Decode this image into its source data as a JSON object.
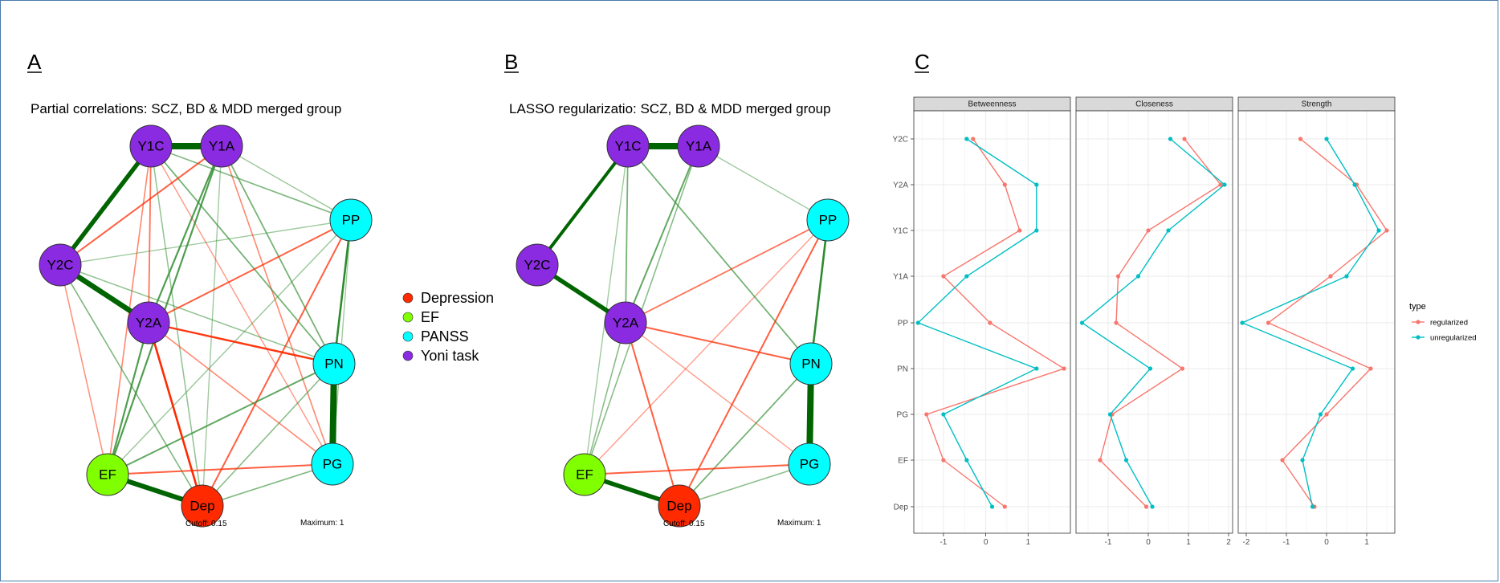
{
  "panels": [
    {
      "letter": "A",
      "title": "Partial correlations: SCZ, BD & MDD merged group",
      "cutoff": "Cutoff: 0.15",
      "maximum": "Maximum: 1"
    },
    {
      "letter": "B",
      "title": "LASSO regularizatio: SCZ, BD & MDD merged group",
      "cutoff": "Cutoff: 0.15",
      "maximum": "Maximum: 1"
    },
    {
      "letter": "C"
    }
  ],
  "network_nodes": [
    {
      "id": "Y1C",
      "group": "Yoni task"
    },
    {
      "id": "Y1A",
      "group": "Yoni task"
    },
    {
      "id": "PP",
      "group": "PANSS"
    },
    {
      "id": "Y2C",
      "group": "Yoni task"
    },
    {
      "id": "Y2A",
      "group": "Yoni task"
    },
    {
      "id": "PN",
      "group": "PANSS"
    },
    {
      "id": "PG",
      "group": "PANSS"
    },
    {
      "id": "EF",
      "group": "EF"
    },
    {
      "id": "Dep",
      "group": "Depression"
    }
  ],
  "groups": {
    "Depression": "#ff2a00",
    "EF": "#80ff00",
    "PANSS": "#00ffff",
    "Yoni task": "#8a2be2"
  },
  "legend": [
    {
      "label": "Depression",
      "color": "#ff2a00"
    },
    {
      "label": "EF",
      "color": "#80ff00"
    },
    {
      "label": "PANSS",
      "color": "#00ffff"
    },
    {
      "label": "Yoni task",
      "color": "#8a2be2"
    }
  ],
  "edges_A": [
    [
      "Y1C",
      "Y1A",
      1.0
    ],
    [
      "Y1C",
      "Y2C",
      0.75
    ],
    [
      "Y2C",
      "Y2A",
      0.85
    ],
    [
      "PP",
      "PN",
      0.45
    ],
    [
      "PN",
      "PG",
      1.0
    ],
    [
      "EF",
      "Dep",
      0.8
    ],
    [
      "Y2A",
      "Dep",
      -0.45
    ],
    [
      "Y2A",
      "PN",
      -0.4
    ],
    [
      "Y1A",
      "Y2A",
      0.35
    ],
    [
      "Y1A",
      "EF",
      0.35
    ],
    [
      "Y2A",
      "EF",
      0.35
    ],
    [
      "Y1C",
      "Y2A",
      -0.25
    ],
    [
      "Y1A",
      "Y2C",
      -0.3
    ],
    [
      "Y2A",
      "PP",
      -0.3
    ],
    [
      "PP",
      "Dep",
      -0.3
    ],
    [
      "PN",
      "EF",
      0.3
    ],
    [
      "EF",
      "PG",
      -0.3
    ],
    [
      "Y1C",
      "PN",
      0.25
    ],
    [
      "Y1A",
      "PN",
      0.25
    ],
    [
      "Y1C",
      "PP",
      0.22
    ],
    [
      "Y2C",
      "Dep",
      0.22
    ],
    [
      "PG",
      "Dep",
      0.22
    ],
    [
      "Y1C",
      "EF",
      -0.2
    ],
    [
      "PN",
      "Dep",
      0.2
    ],
    [
      "Y2A",
      "PG",
      -0.2
    ],
    [
      "Y1A",
      "PG",
      -0.2
    ],
    [
      "Y1C",
      "Dep",
      0.18
    ],
    [
      "Y2C",
      "PN",
      0.18
    ],
    [
      "Y2C",
      "EF",
      -0.18
    ],
    [
      "Y1A",
      "PP",
      0.16
    ],
    [
      "PP",
      "EF",
      0.16
    ],
    [
      "Y1C",
      "PG",
      -0.16
    ],
    [
      "Y2C",
      "PP",
      0.15
    ],
    [
      "Y1A",
      "Dep",
      0.15
    ],
    [
      "PP",
      "PG",
      0.15
    ]
  ],
  "edges_B": [
    [
      "Y1C",
      "Y1A",
      1.0
    ],
    [
      "Y1C",
      "Y2C",
      0.6
    ],
    [
      "Y2C",
      "Y2A",
      0.75
    ],
    [
      "PP",
      "PN",
      0.45
    ],
    [
      "PN",
      "PG",
      1.0
    ],
    [
      "EF",
      "Dep",
      0.75
    ],
    [
      "Y1A",
      "Y2A",
      0.3
    ],
    [
      "Y1C",
      "Y2A",
      0.25
    ],
    [
      "Y2A",
      "PN",
      -0.3
    ],
    [
      "Y1C",
      "PN",
      0.25
    ],
    [
      "Y2A",
      "PP",
      -0.25
    ],
    [
      "Y2A",
      "Dep",
      -0.3
    ],
    [
      "PP",
      "Dep",
      -0.3
    ],
    [
      "PN",
      "Dep",
      0.25
    ],
    [
      "EF",
      "PG",
      -0.3
    ],
    [
      "Y1A",
      "EF",
      0.2
    ],
    [
      "Y2A",
      "EF",
      0.2
    ],
    [
      "PG",
      "Dep",
      0.2
    ],
    [
      "Y1A",
      "PP",
      0.15
    ],
    [
      "Y1C",
      "EF",
      0.15
    ],
    [
      "Y2A",
      "PG",
      -0.15
    ],
    [
      "PP",
      "EF",
      -0.15
    ]
  ],
  "chart_data": {
    "type": "line",
    "y_categories": [
      "Y2C",
      "Y2A",
      "Y1C",
      "Y1A",
      "PP",
      "PN",
      "PG",
      "EF",
      "Dep"
    ],
    "facets": [
      {
        "name": "Betweenness",
        "x_ticks": [
          -1,
          0,
          1
        ],
        "xlim": [
          -1.7,
          2.0
        ],
        "series": [
          {
            "name": "regularized",
            "values": [
              -0.3,
              0.45,
              0.8,
              -1.0,
              0.1,
              1.85,
              -1.4,
              -1.0,
              0.45
            ]
          },
          {
            "name": "unregularized",
            "values": [
              -0.45,
              1.2,
              1.2,
              -0.45,
              -1.6,
              1.2,
              -1.0,
              -0.45,
              0.15
            ]
          }
        ]
      },
      {
        "name": "Closeness",
        "x_ticks": [
          -1,
          0,
          1,
          2
        ],
        "xlim": [
          -1.8,
          2.1
        ],
        "series": [
          {
            "name": "regularized",
            "values": [
              0.9,
              1.8,
              0.0,
              -0.75,
              -0.8,
              0.85,
              -0.9,
              -1.2,
              -0.05
            ]
          },
          {
            "name": "unregularized",
            "values": [
              0.55,
              1.9,
              0.5,
              -0.25,
              -1.65,
              0.05,
              -0.95,
              -0.55,
              0.1
            ]
          }
        ]
      },
      {
        "name": "Strength",
        "x_ticks": [
          -2,
          -1,
          0,
          1
        ],
        "xlim": [
          -2.2,
          1.7
        ],
        "series": [
          {
            "name": "regularized",
            "values": [
              -0.65,
              0.75,
              1.5,
              0.1,
              -1.45,
              1.1,
              0.0,
              -1.1,
              -0.3
            ]
          },
          {
            "name": "unregularized",
            "values": [
              0.0,
              0.7,
              1.3,
              0.5,
              -2.1,
              0.65,
              -0.15,
              -0.6,
              -0.35
            ]
          }
        ]
      }
    ],
    "legend_title": "type",
    "legend": [
      {
        "label": "regularized",
        "color": "#f8766d"
      },
      {
        "label": "unregularized",
        "color": "#00bfc4"
      }
    ],
    "grid": true,
    "legend_position": "right"
  }
}
